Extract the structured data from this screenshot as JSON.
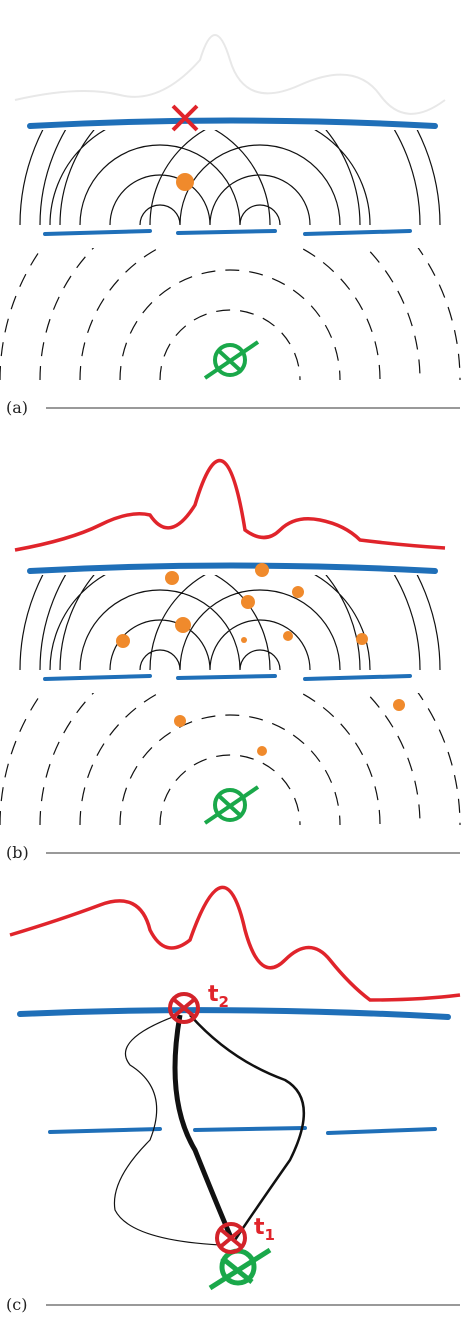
{
  "panels": [
    {
      "label": "(a)"
    },
    {
      "label": "(b)"
    },
    {
      "label": "(c)"
    }
  ],
  "annotations": {
    "t2": {
      "base": "t",
      "sub": "2"
    },
    "t1": {
      "base": "t",
      "sub": "1"
    }
  }
}
